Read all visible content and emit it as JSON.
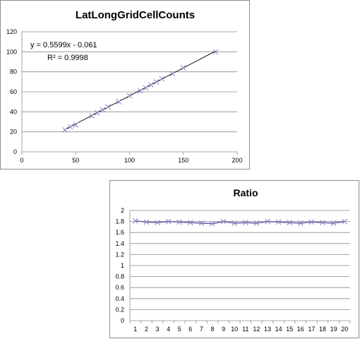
{
  "chart_data": [
    {
      "type": "scatter",
      "title": "LatLongGridCellCounts",
      "xlabel": "",
      "ylabel": "",
      "xlim": [
        0,
        200
      ],
      "ylim": [
        0,
        120
      ],
      "x_ticks": [
        "0",
        "50",
        "100",
        "150",
        "200"
      ],
      "y_ticks": [
        "0",
        "20",
        "40",
        "60",
        "80",
        "100",
        "120"
      ],
      "grid": "horizontal",
      "marker_color": "#8e86c8",
      "trendline_color": "#000000",
      "points": [
        {
          "x": 40,
          "y": 22
        },
        {
          "x": 45,
          "y": 25
        },
        {
          "x": 50,
          "y": 27
        },
        {
          "x": 65,
          "y": 36
        },
        {
          "x": 70,
          "y": 39
        },
        {
          "x": 75,
          "y": 42
        },
        {
          "x": 80,
          "y": 45
        },
        {
          "x": 90,
          "y": 50
        },
        {
          "x": 100,
          "y": 56
        },
        {
          "x": 110,
          "y": 61
        },
        {
          "x": 115,
          "y": 64
        },
        {
          "x": 120,
          "y": 67
        },
        {
          "x": 125,
          "y": 70
        },
        {
          "x": 130,
          "y": 73
        },
        {
          "x": 140,
          "y": 78
        },
        {
          "x": 150,
          "y": 84
        },
        {
          "x": 180,
          "y": 100
        }
      ],
      "trendline": {
        "slope": 0.5599,
        "intercept": -0.061,
        "x_range": [
          40,
          180
        ]
      },
      "annotations": [
        "y = 0.5599x - 0.061",
        "R² = 0.9998"
      ]
    },
    {
      "type": "line",
      "title": "Ratio",
      "xlabel": "",
      "ylabel": "",
      "ylim": [
        0,
        2
      ],
      "y_ticks": [
        "0",
        "0.2",
        "0.4",
        "0.6",
        "0.8",
        "1",
        "1.2",
        "1.4",
        "1.6",
        "1.8",
        "2"
      ],
      "categories": [
        "1",
        "2",
        "3",
        "4",
        "5",
        "6",
        "7",
        "8",
        "9",
        "10",
        "11",
        "12",
        "13",
        "14",
        "15",
        "16",
        "17",
        "18",
        "19",
        "20"
      ],
      "grid": "horizontal",
      "line_color": "#7a5ea8",
      "marker_color": "#8e86c8",
      "series": [
        {
          "values": [
            1.81,
            1.79,
            1.78,
            1.8,
            1.79,
            1.78,
            1.77,
            1.76,
            1.8,
            1.77,
            1.78,
            1.77,
            1.8,
            1.79,
            1.78,
            1.77,
            1.79,
            1.78,
            1.77,
            1.8
          ]
        }
      ]
    }
  ]
}
